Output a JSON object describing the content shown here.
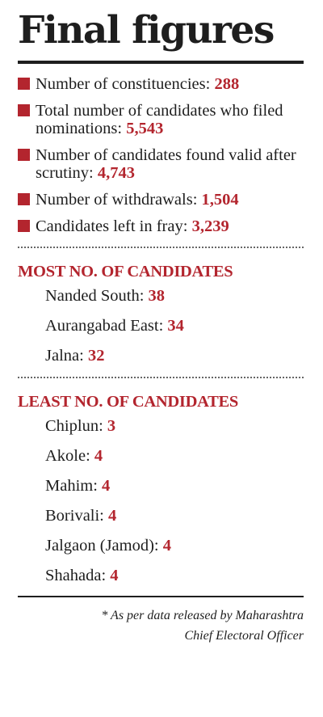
{
  "title": "Final figures",
  "stats": [
    {
      "label": "Number of constituencies:",
      "value": "288"
    },
    {
      "label": "Total number of candidates who filed nominations:",
      "value": "5,543"
    },
    {
      "label": "Number of candidates found valid after scrutiny:",
      "value": "4,743"
    },
    {
      "label": "Number of withdrawals:",
      "value": "1,504"
    },
    {
      "label": "Candidates left in fray:",
      "value": "3,239"
    }
  ],
  "most": {
    "heading": "MOST NO. OF CANDIDATES",
    "items": [
      {
        "name": "Nanded South:",
        "value": "38"
      },
      {
        "name": "Aurangabad East:",
        "value": "34"
      },
      {
        "name": "Jalna:",
        "value": "32"
      }
    ]
  },
  "least": {
    "heading": "LEAST NO. OF CANDIDATES",
    "items": [
      {
        "name": "Chiplun:",
        "value": "3"
      },
      {
        "name": "Akole:",
        "value": "4"
      },
      {
        "name": "Mahim:",
        "value": "4"
      },
      {
        "name": "Borivali:",
        "value": "4"
      },
      {
        "name": "Jalgaon (Jamod):",
        "value": "4"
      },
      {
        "name": "Shahada:",
        "value": "4"
      }
    ]
  },
  "footnote": {
    "line1": "* As per data released by Maharashtra",
    "line2": "Chief Electoral Officer"
  },
  "colors": {
    "accent": "#b3252e",
    "text": "#1e1e1e"
  }
}
